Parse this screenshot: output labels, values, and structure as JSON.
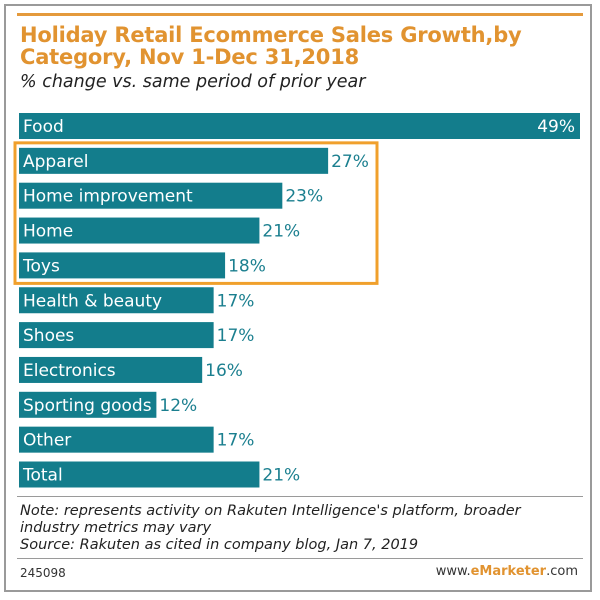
{
  "chart_data": {
    "type": "bar",
    "orientation": "horizontal",
    "title": "Holiday Retail Ecommerce Sales Growth,by Category, Nov 1-Dec 31,2018",
    "subtitle": "% change vs. same period of prior year",
    "categories": [
      "Food",
      "Apparel",
      "Home improvement",
      "Home",
      "Toys",
      "Health & beauty",
      "Shoes",
      "Electronics",
      "Sporting goods",
      "Other",
      "Total"
    ],
    "values": [
      49,
      27,
      23,
      21,
      18,
      17,
      17,
      16,
      12,
      17,
      21
    ],
    "value_labels": [
      "49%",
      "27%",
      "23%",
      "21%",
      "18%",
      "17%",
      "17%",
      "16%",
      "12%",
      "17%",
      "21%"
    ],
    "unit": "%",
    "xlim": [
      0,
      49
    ],
    "grid": false,
    "highlight": {
      "categories": [
        "Apparel",
        "Home improvement",
        "Home",
        "Toys"
      ],
      "color": "#f0a02c"
    },
    "colors": {
      "bar": "#137d8c",
      "title": "#e19330",
      "value_text": "#1b7f8f"
    }
  },
  "footer": {
    "note": "Note: represents activity on Rakuten Intelligence's platform, broader industry metrics may vary",
    "source": "Source: Rakuten as cited in company blog, Jan 7, 2019",
    "chart_id": "245098",
    "brand_prefix": "www.",
    "brand_name": "eMarketer",
    "brand_suffix": ".com"
  }
}
